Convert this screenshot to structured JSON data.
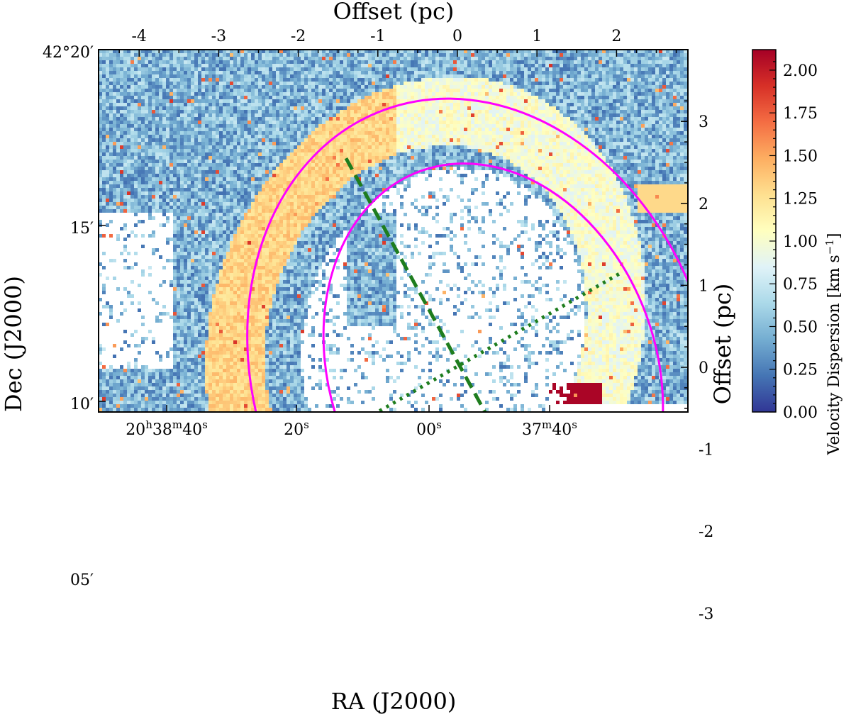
{
  "chart_data": {
    "type": "heatmap",
    "title": "",
    "axes": {
      "bottom": {
        "label": "RA (J2000)",
        "ticks": [
          {
            "h": "20",
            "m": "38",
            "s": "40",
            "text": "20h38m40s"
          },
          {
            "s": "20",
            "text": "20s"
          },
          {
            "s": "00",
            "text": "00s"
          },
          {
            "m": "37",
            "s": "40",
            "text": "37m40s"
          }
        ]
      },
      "left": {
        "label": "Dec (J2000)",
        "ticks": [
          "42°20′",
          "15′",
          "10′",
          "05′"
        ]
      },
      "top": {
        "label": "Offset (pc)",
        "ticks": [
          "-4",
          "-3",
          "-2",
          "-1",
          "0",
          "1",
          "2"
        ]
      },
      "right": {
        "label": "Offset (pc)",
        "ticks": [
          "3",
          "2",
          "1",
          "0",
          "-1",
          "-2",
          "-3"
        ]
      }
    },
    "colorbar": {
      "label": "Velocity Dispersion [km s",
      "label_exponent": "−1",
      "label_close": "]",
      "range": [
        0.0,
        2.12
      ],
      "ticks": [
        "0.00",
        "0.25",
        "0.50",
        "0.75",
        "1.00",
        "1.25",
        "1.50",
        "1.75",
        "2.00"
      ],
      "colormap": "RdYlBu_r",
      "colors": [
        "#313695",
        "#4575b4",
        "#74add1",
        "#abd9e9",
        "#e0f3f8",
        "#ffffbf",
        "#fee090",
        "#fdae61",
        "#f46d43",
        "#d73027",
        "#a50026"
      ]
    },
    "overlays": {
      "ellipse_color": "#ff00ff",
      "cut_color": "#1e7d1e",
      "outer_ellipse": {
        "center_pc": [
          0.3,
          -0.1
        ],
        "semi_axes_pc": [
          2.85,
          3.45
        ],
        "rotation_deg": 20
      },
      "inner_ellipse": {
        "center_pc": [
          0.45,
          -0.05
        ],
        "semi_axes_pc": [
          2.05,
          2.6
        ],
        "rotation_deg": 20
      },
      "major_cut": {
        "style": "dashed",
        "from_pc": [
          -1.4,
          2.55
        ],
        "to_pc": [
          1.45,
          -2.5
        ]
      },
      "minor_cut": {
        "style": "dotted",
        "from_pc": [
          -2.0,
          -1.1
        ],
        "to_pc": [
          2.05,
          1.15
        ]
      }
    }
  }
}
